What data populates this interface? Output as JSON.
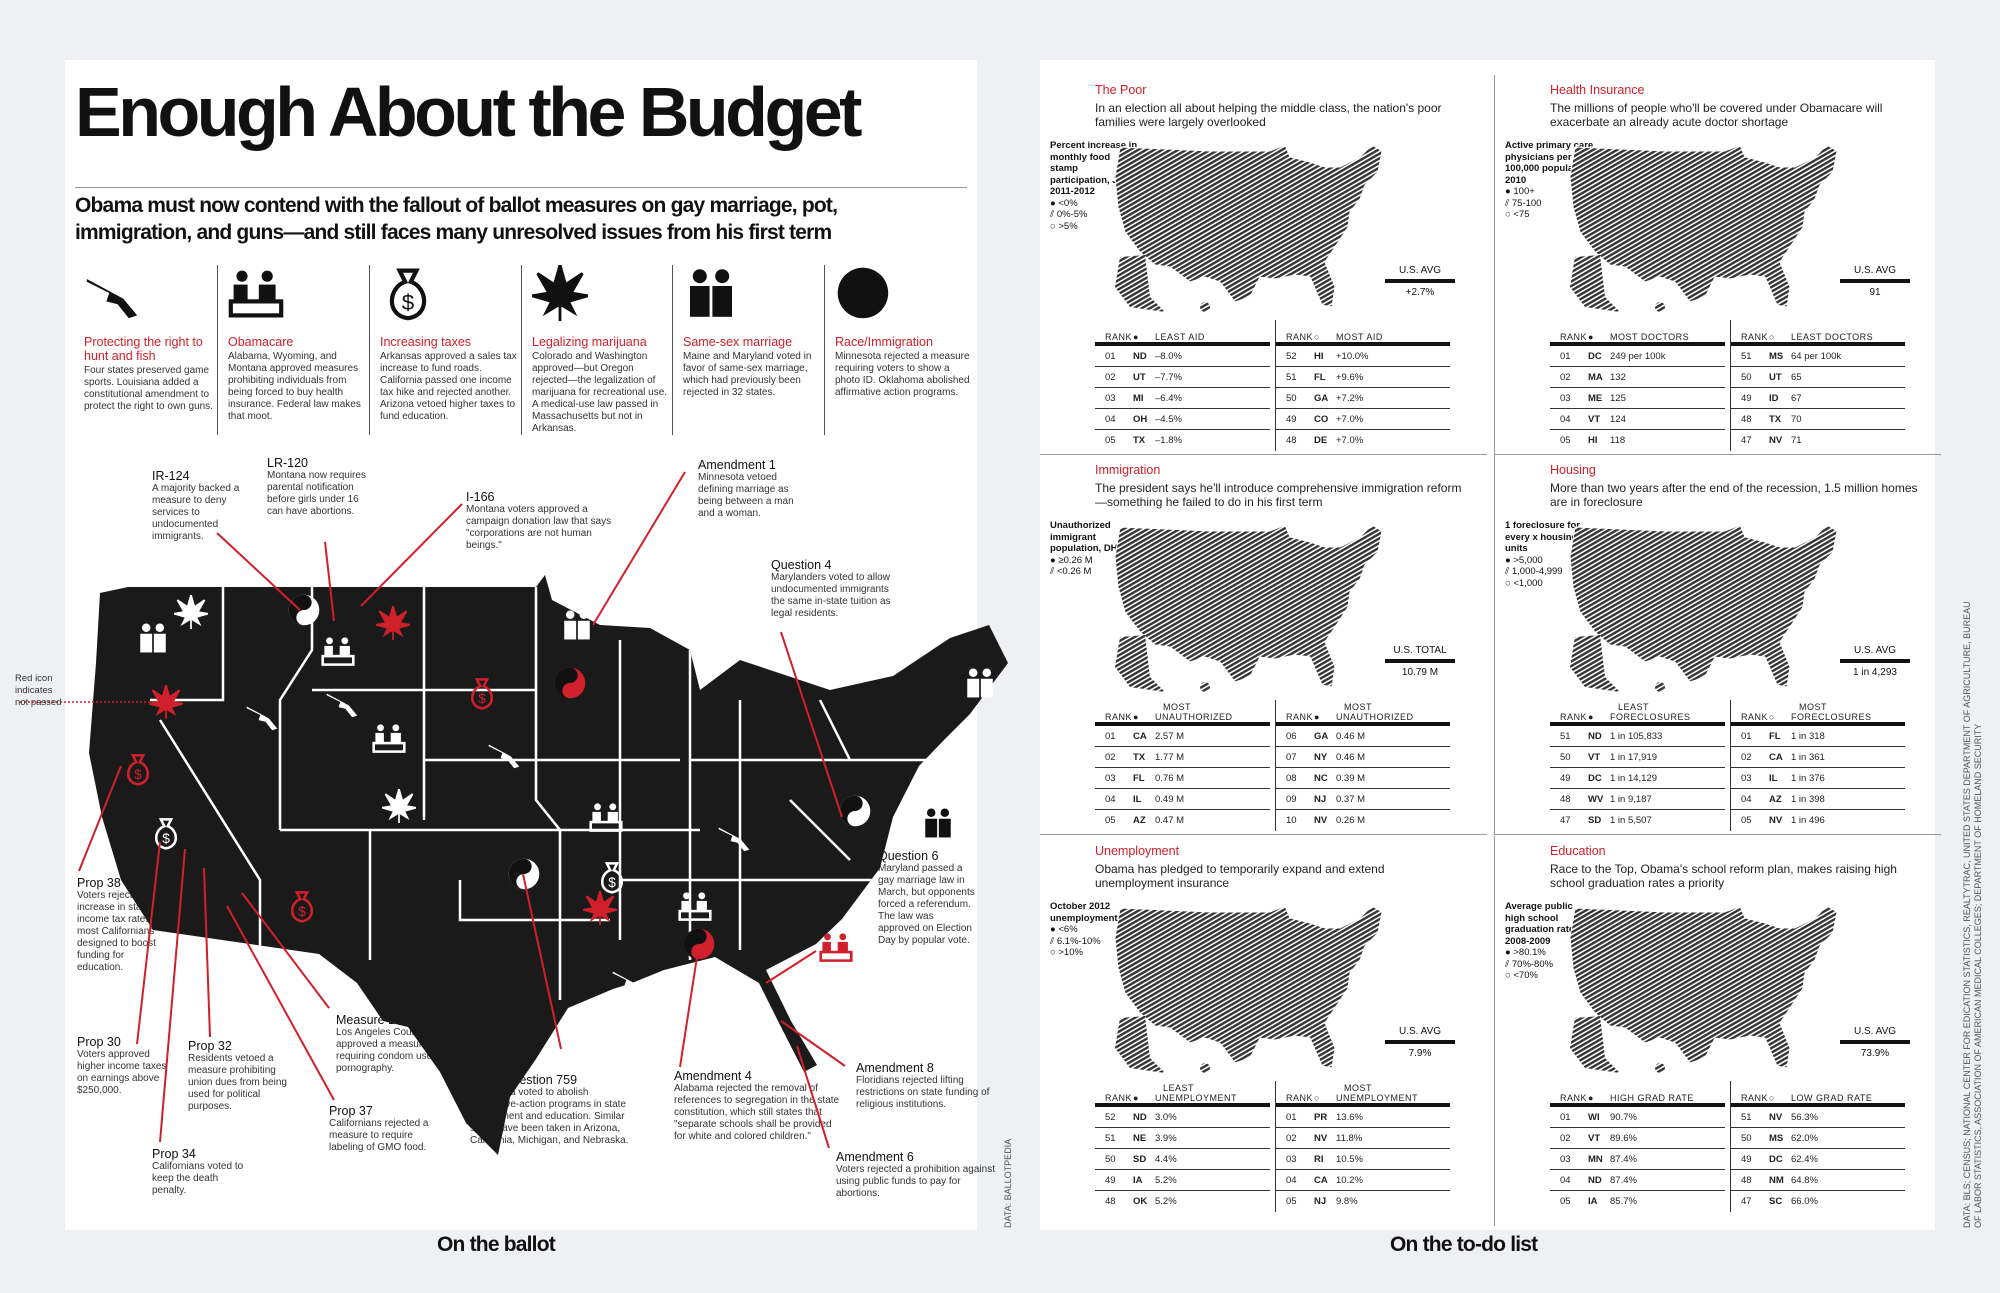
{
  "left": {
    "title": "Enough About the Budget",
    "subtitle": "Obama must now contend with the fallout of ballot measures on gay marriage, pot, immigration, and guns—and still faces many unresolved issues from his first term",
    "categories": [
      {
        "icon": "gun-fish-icon",
        "title": "Protecting the right to hunt and fish",
        "text": "Four states preserved game sports. Louisiana added a constitutional amendment to protect the right to own guns."
      },
      {
        "icon": "doctor-patient-icon",
        "title": "Obamacare",
        "text": "Alabama, Wyoming, and Montana approved measures prohibiting individuals from being forced to buy health insurance. Federal law makes that moot."
      },
      {
        "icon": "money-bag-icon",
        "title": "Increasing taxes",
        "text": "Arkansas approved a sales tax increase to fund roads. California passed one income tax hike and rejected another. Arizona vetoed higher taxes to fund education."
      },
      {
        "icon": "marijuana-leaf-icon",
        "title": "Legalizing marijuana",
        "text": "Colorado and Washington approved—but Oregon rejected—the legalization of marijuana for recreational use. A medical-use law passed in Massachusetts but not in Arkansas."
      },
      {
        "icon": "grooms-couple-icon",
        "title": "Same-sex marriage",
        "text": "Maine and Maryland voted in favor of same-sex marriage, which had previously been rejected in 32 states."
      },
      {
        "icon": "yin-yang-icon",
        "title": "Race/Immigration",
        "text": "Minnesota rejected a measure requiring voters to show a photo ID. Oklahoma abolished affirmative action programs."
      }
    ],
    "legend_note": "Red icon indicates not passed",
    "annotations": [
      {
        "title": "IR-124",
        "text": "A majority backed a measure to deny services to undocumented immigrants."
      },
      {
        "title": "LR-120",
        "text": "Montana now requires parental notification before girls under 16 can have abortions."
      },
      {
        "title": "I-166",
        "text": "Montana voters approved a campaign donation law that says \"corporations are not human beings.\""
      },
      {
        "title": "Amendment 1",
        "text": "Minnesota vetoed defining marriage as being between a man and a woman."
      },
      {
        "title": "Question 4",
        "text": "Marylanders voted to allow undocumented immigrants the same in-state tuition as legal residents."
      },
      {
        "title": "Question 6",
        "text": "Maryland passed a gay marriage law in March, but opponents forced a referendum. The law was approved on Election Day by popular vote."
      },
      {
        "title": "Prop 38",
        "text": "Voters rejected an increase in state income tax rates for most Californians designed to boost funding for education."
      },
      {
        "title": "Prop 30",
        "text": "Voters approved higher income taxes on earnings above $250,000."
      },
      {
        "title": "Prop 32",
        "text": "Residents vetoed a measure prohibiting union dues from being used for political purposes."
      },
      {
        "title": "Prop 34",
        "text": "Californians voted to keep the death penalty."
      },
      {
        "title": "Prop 37",
        "text": "Californians rejected a measure to require labeling of GMO food."
      },
      {
        "title": "Measure B",
        "text": "Los Angeles County approved a measure requiring condom use in pornography."
      },
      {
        "title": "State Question 759",
        "text": "Oklahoma voted to abolish affirmative-action programs in state government and education. Similar steps have been taken in Arizona, California, Michigan, and Nebraska."
      },
      {
        "title": "Amendment 4",
        "text": "Alabama rejected the removal of references to segregation in the state constitution, which still states that \"separate schools shall be provided for white and colored children.\""
      },
      {
        "title": "Amendment 8",
        "text": "Floridians rejected lifting restrictions on state funding of religious institutions."
      },
      {
        "title": "Amendment 6",
        "text": "Voters rejected a prohibition against using public funds to pay for abortions."
      }
    ],
    "source": "DATA: BALLOTPEDIA",
    "footer": "On the ballot"
  },
  "right": {
    "footer": "On the to-do list",
    "source": "DATA: BLS; CENSUS; NATIONAL CENTER FOR EDICATION STATISTICS, REALTYTRAC, UNITED STATES DEPARTMENT OF AGRICULTURE, BUREAU OF LABOR STATISTICS, ASSOCIATION OF AMERICAN MEDICAL COLLEGES; DEPARTMENT OF HOMELAND SECURITY",
    "sections": [
      {
        "title": "The Poor",
        "description": "In an election all about helping the middle class, the nation's poor families were largely overlooked",
        "legend_title": "Percent increase in monthly food stamp participation, July 2011-2012",
        "legend": [
          "● <0%",
          "⫽ 0%-5%",
          "○ >5%"
        ],
        "avg_label": "U.S. AVG",
        "avg_value": "+2.7%",
        "tables": [
          {
            "top": "",
            "header": "LEAST AID",
            "marker": "●",
            "rows": [
              [
                "01",
                "ND",
                "–8.0%"
              ],
              [
                "02",
                "UT",
                "–7.7%"
              ],
              [
                "03",
                "MI",
                "–6.4%"
              ],
              [
                "04",
                "OH",
                "–4.5%"
              ],
              [
                "05",
                "TX",
                "–1.8%"
              ]
            ]
          },
          {
            "top": "",
            "header": "MOST AID",
            "marker": "○",
            "rows": [
              [
                "52",
                "HI",
                "+10.0%"
              ],
              [
                "51",
                "FL",
                "+9.6%"
              ],
              [
                "50",
                "GA",
                "+7.2%"
              ],
              [
                "49",
                "CO",
                "+7.0%"
              ],
              [
                "48",
                "DE",
                "+7.0%"
              ]
            ]
          }
        ]
      },
      {
        "title": "Health Insurance",
        "description": "The millions of people who'll be covered under Obamacare will exacerbate an already acute doctor shortage",
        "legend_title": "Active primary care physicians per 100,000 population, 2010",
        "legend": [
          "● 100+",
          "⫽ 75-100",
          "○ <75"
        ],
        "avg_label": "U.S. AVG",
        "avg_value": "91",
        "tables": [
          {
            "top": "",
            "header": "MOST DOCTORS",
            "marker": "●",
            "rows": [
              [
                "01",
                "DC",
                "249 per 100k"
              ],
              [
                "02",
                "MA",
                "132"
              ],
              [
                "03",
                "ME",
                "125"
              ],
              [
                "04",
                "VT",
                "124"
              ],
              [
                "05",
                "HI",
                "118"
              ]
            ]
          },
          {
            "top": "",
            "header": "LEAST DOCTORS",
            "marker": "○",
            "rows": [
              [
                "51",
                "MS",
                "64 per 100k"
              ],
              [
                "50",
                "UT",
                "65"
              ],
              [
                "49",
                "ID",
                "67"
              ],
              [
                "48",
                "TX",
                "70"
              ],
              [
                "47",
                "NV",
                "71"
              ]
            ]
          }
        ]
      },
      {
        "title": "Immigration",
        "description": "The president says he'll introduce comprehensive immigration reform—something he failed to do in his first term",
        "legend_title": "Unauthorized immigrant population, DHS",
        "legend": [
          "● ≥0.26 M",
          "⫽ <0.26 M"
        ],
        "avg_label": "U.S. TOTAL",
        "avg_value": "10.79 M",
        "tables": [
          {
            "top": "MOST",
            "header": "UNAUTHORIZED",
            "marker": "●",
            "rows": [
              [
                "01",
                "CA",
                "2.57 M"
              ],
              [
                "02",
                "TX",
                "1.77 M"
              ],
              [
                "03",
                "FL",
                "0.76 M"
              ],
              [
                "04",
                "IL",
                "0.49 M"
              ],
              [
                "05",
                "AZ",
                "0.47 M"
              ]
            ]
          },
          {
            "top": "MOST",
            "header": "UNAUTHORIZED",
            "marker": "●",
            "rows": [
              [
                "06",
                "GA",
                "0.46 M"
              ],
              [
                "07",
                "NY",
                "0.46 M"
              ],
              [
                "08",
                "NC",
                "0.39 M"
              ],
              [
                "09",
                "NJ",
                "0.37 M"
              ],
              [
                "10",
                "NV",
                "0.26 M"
              ]
            ]
          }
        ]
      },
      {
        "title": "Housing",
        "description": "More than two years after the end of the recession, 1.5 million homes are in foreclosure",
        "legend_title": "1 foreclosure for every x housing units",
        "legend": [
          "● >5,000",
          "⫽ 1,000-4,999",
          "○ <1,000"
        ],
        "avg_label": "U.S. AVG",
        "avg_value": "1 in 4,293",
        "tables": [
          {
            "top": "LEAST",
            "header": "FORECLOSURES",
            "marker": "●",
            "rows": [
              [
                "51",
                "ND",
                "1 in 105,833"
              ],
              [
                "50",
                "VT",
                "1 in 17,919"
              ],
              [
                "49",
                "DC",
                "1 in 14,129"
              ],
              [
                "48",
                "WV",
                "1 in 9,187"
              ],
              [
                "47",
                "SD",
                "1 in 5,507"
              ]
            ]
          },
          {
            "top": "MOST",
            "header": "FORECLOSURES",
            "marker": "○",
            "rows": [
              [
                "01",
                "FL",
                "1 in 318"
              ],
              [
                "02",
                "CA",
                "1 in 361"
              ],
              [
                "03",
                "IL",
                "1 in 376"
              ],
              [
                "04",
                "AZ",
                "1 in 398"
              ],
              [
                "05",
                "NV",
                "1 in 496"
              ]
            ]
          }
        ]
      },
      {
        "title": "Unemployment",
        "description": "Obama has pledged to temporarily expand and extend unemployment insurance",
        "legend_title": "October 2012 unemployment",
        "legend": [
          "● <6%",
          "⫽ 6.1%-10%",
          "○ >10%"
        ],
        "avg_label": "U.S. AVG",
        "avg_value": "7.9%",
        "tables": [
          {
            "top": "LEAST",
            "header": "UNEMPLOYMENT",
            "marker": "●",
            "rows": [
              [
                "52",
                "ND",
                "3.0%"
              ],
              [
                "51",
                "NE",
                "3.9%"
              ],
              [
                "50",
                "SD",
                "4.4%"
              ],
              [
                "49",
                "IA",
                "5.2%"
              ],
              [
                "48",
                "OK",
                "5.2%"
              ]
            ]
          },
          {
            "top": "MOST",
            "header": "UNEMPLOYMENT",
            "marker": "○",
            "rows": [
              [
                "01",
                "PR",
                "13.6%"
              ],
              [
                "02",
                "NV",
                "11.8%"
              ],
              [
                "03",
                "RI",
                "10.5%"
              ],
              [
                "04",
                "CA",
                "10.2%"
              ],
              [
                "05",
                "NJ",
                "9.8%"
              ]
            ]
          }
        ]
      },
      {
        "title": "Education",
        "description": "Race to the Top, Obama's school reform plan, makes raising high school graduation rates a priority",
        "legend_title": "Average public high school graduation rate, 2008-2009",
        "legend": [
          "● >80.1%",
          "⫽ 70%-80%",
          "○ <70%"
        ],
        "avg_label": "U.S. AVG",
        "avg_value": "73.9%",
        "tables": [
          {
            "top": "",
            "header": "HIGH GRAD RATE",
            "marker": "●",
            "rows": [
              [
                "01",
                "WI",
                "90.7%"
              ],
              [
                "02",
                "VT",
                "89.6%"
              ],
              [
                "03",
                "MN",
                "87.4%"
              ],
              [
                "04",
                "ND",
                "87.4%"
              ],
              [
                "05",
                "IA",
                "85.7%"
              ]
            ]
          },
          {
            "top": "",
            "header": "LOW GRAD RATE",
            "marker": "○",
            "rows": [
              [
                "51",
                "NV",
                "56.3%"
              ],
              [
                "50",
                "MS",
                "62.0%"
              ],
              [
                "49",
                "DC",
                "62.4%"
              ],
              [
                "48",
                "NM",
                "64.8%"
              ],
              [
                "47",
                "SC",
                "66.0%"
              ]
            ]
          }
        ]
      }
    ],
    "rank_label": "RANK"
  },
  "colors": {
    "accent": "#d0202b",
    "ink": "#111111",
    "background": "#eef0f4"
  }
}
